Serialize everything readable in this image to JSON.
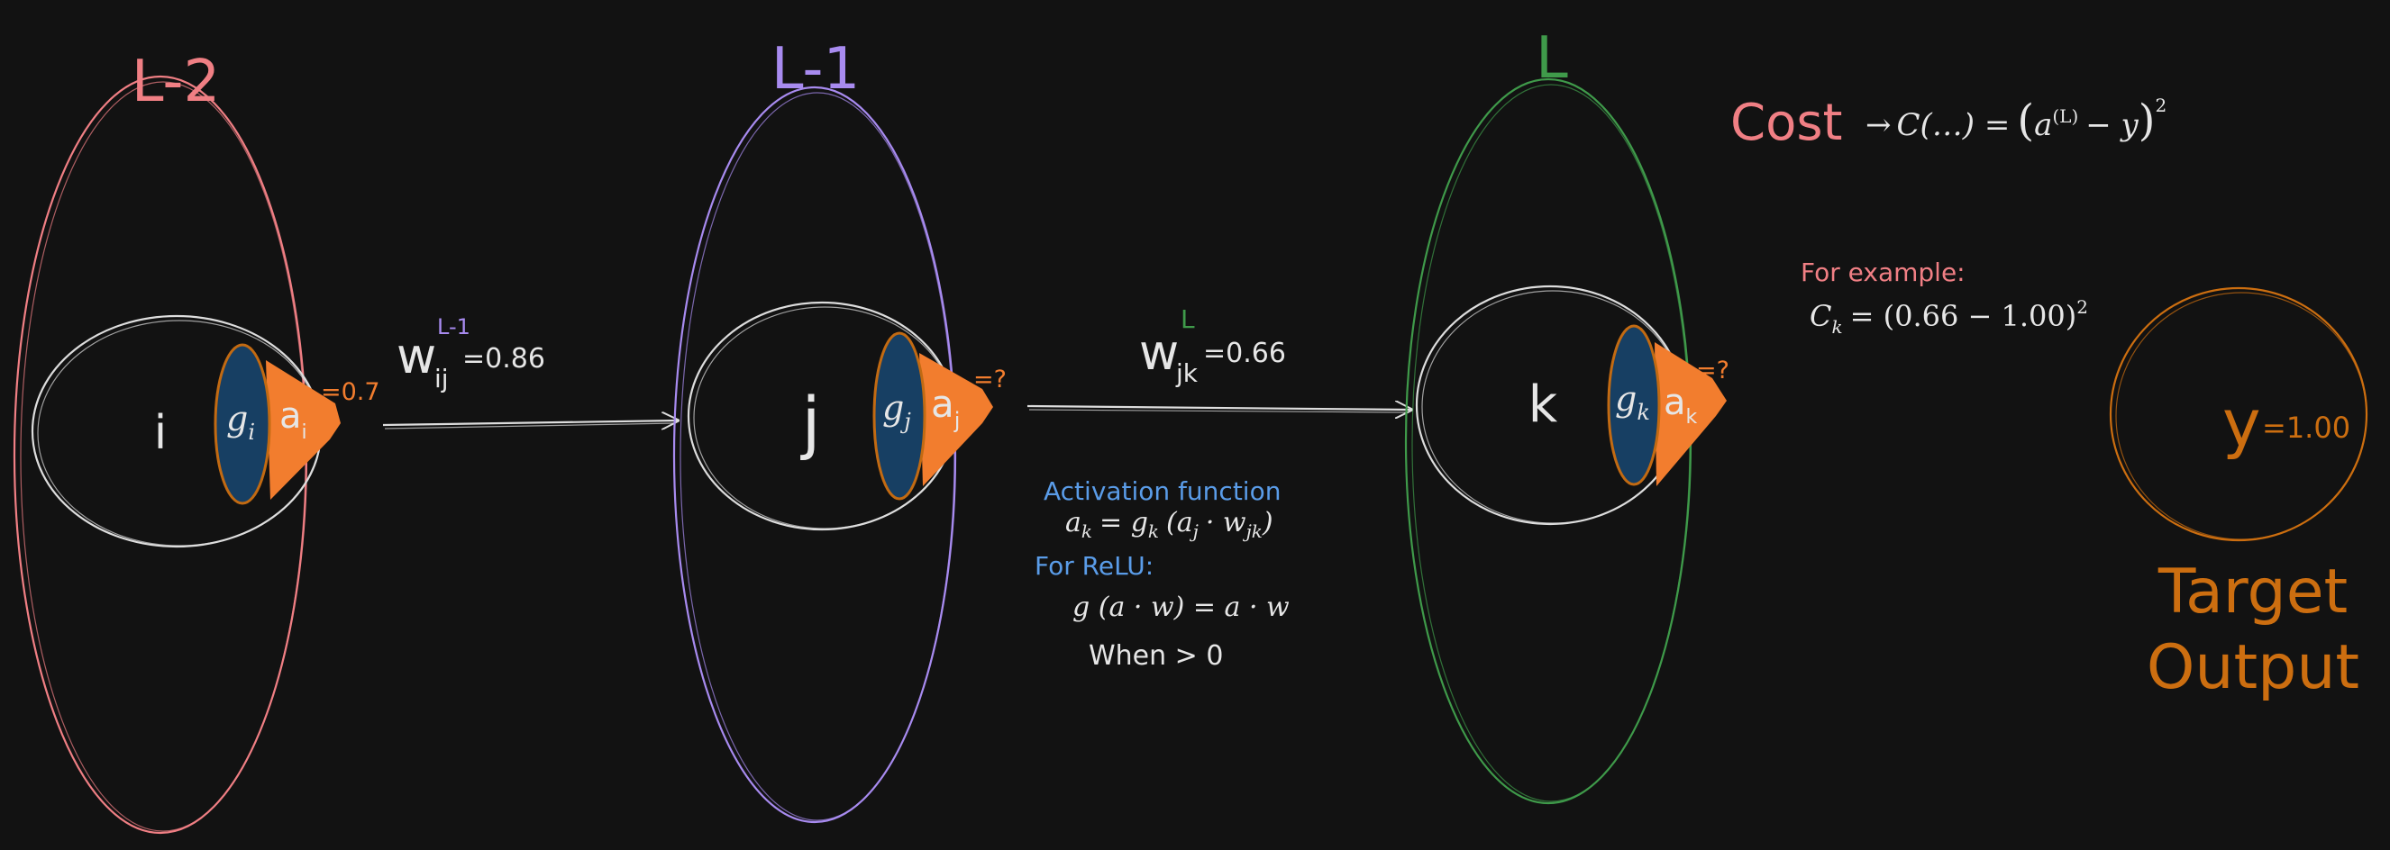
{
  "colors": {
    "background": "#121212",
    "layer_l2": "#f07f84",
    "layer_l1": "#a88bf0",
    "layer_l": "#3f9a4a",
    "node_stroke": "#dddddd",
    "gate_fill": "#173f63",
    "gate_stroke": "#c26a12",
    "act_fill": "#f27d2e",
    "act_label": "#f27d2e",
    "cost": "#f07f84",
    "blue_text": "#5a9ce8",
    "target": "#cc6e10",
    "text": "#e6e6e6"
  },
  "layers": [
    {
      "label": "L-2",
      "node": "i",
      "gate": "g",
      "gate_sub": "i",
      "act": "a",
      "act_sub": "i",
      "act_value": "=0.7"
    },
    {
      "label": "L-1",
      "node": "j",
      "gate": "g",
      "gate_sub": "j",
      "act": "a",
      "act_sub": "j",
      "act_value": "=?"
    },
    {
      "label": "L",
      "node": "k",
      "gate": "g",
      "gate_sub": "k",
      "act": "a",
      "act_sub": "k",
      "act_value": "=?"
    }
  ],
  "weights": [
    {
      "symbol": "w",
      "sub": "ij",
      "sup": "L-1",
      "value": "=0.86"
    },
    {
      "symbol": "w",
      "sub": "jk",
      "sup": "L",
      "value": "=0.66"
    }
  ],
  "cost": {
    "label": "Cost",
    "arrow": "→",
    "formula_lhs": "C(…) =",
    "a": "a",
    "a_sup": "(L)",
    "minus_y": "− y",
    "square": "2",
    "example_label": "For example:",
    "example_C": "C",
    "example_sub": "k",
    "example_rhs": "= (0.66 − 1.00)",
    "example_square": "2"
  },
  "activation": {
    "title": "Activation function",
    "a": "a",
    "a_sub": "k",
    "eq": "= g",
    "g_sub": "k",
    "args_open": "(a",
    "args_sub_j": "j",
    "args_mid": "· w",
    "args_sub_jk": "jk",
    "args_close": ")",
    "relu_title": "For ReLU:",
    "relu_formula": "g (a · w) = a · w",
    "relu_condition": "When > 0"
  },
  "target": {
    "symbol": "y",
    "value": "=1.00",
    "label_line1": "Target",
    "label_line2": "Output"
  }
}
